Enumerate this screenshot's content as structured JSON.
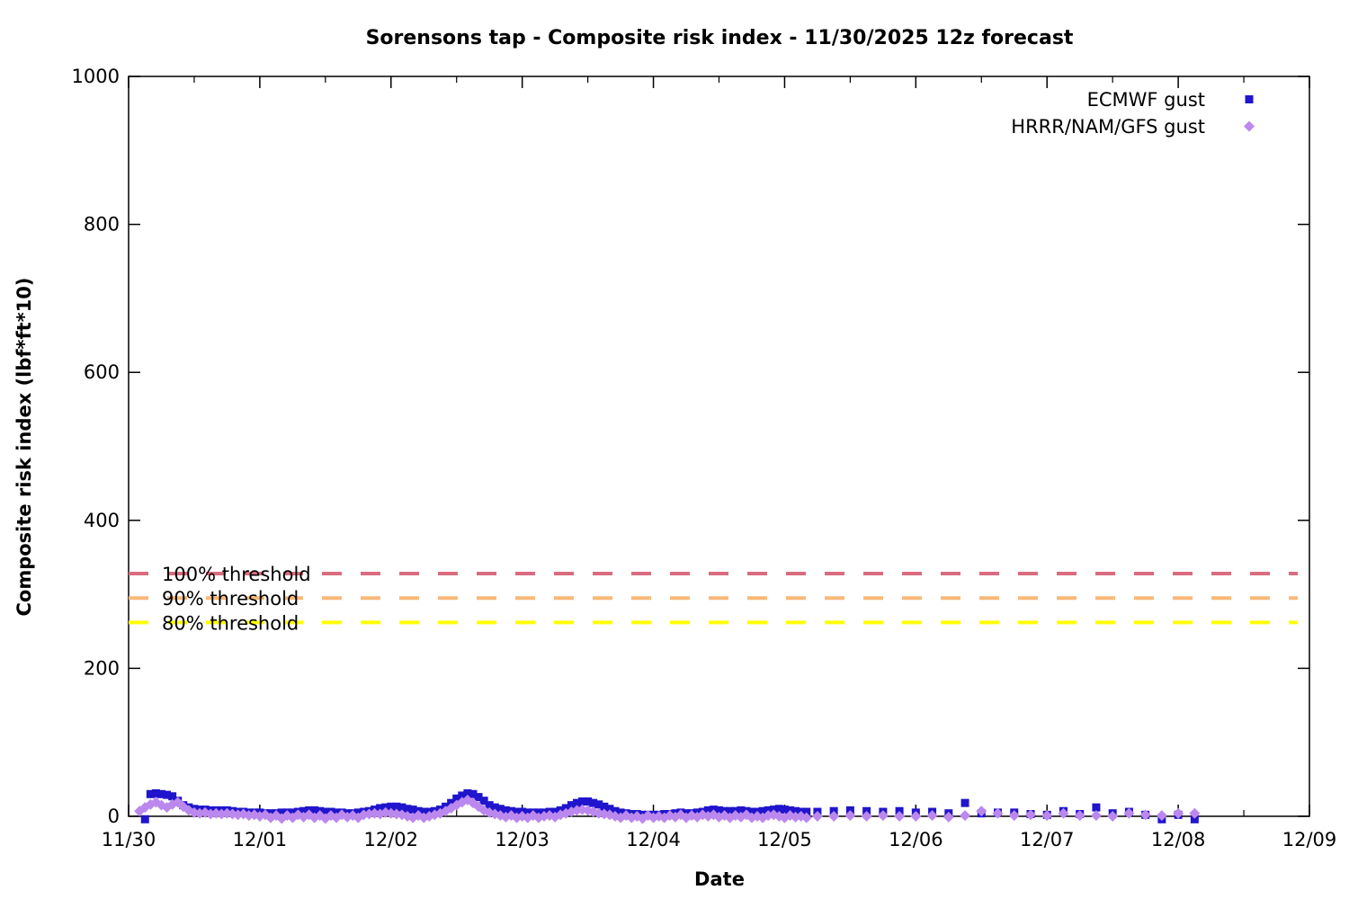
{
  "chart_data": {
    "type": "scatter",
    "title": "Sorensons tap - Composite risk index - 11/30/2025 12z forecast",
    "xlabel": "Date",
    "ylabel": "Composite risk index (lbf*ft*10)",
    "x_tick_labels": [
      "11/30",
      "12/01",
      "12/02",
      "12/03",
      "12/04",
      "12/05",
      "12/06",
      "12/07",
      "12/08",
      "12/09"
    ],
    "y_ticks": [
      0,
      200,
      400,
      600,
      800,
      1000
    ],
    "ylim": [
      0,
      1000
    ],
    "x_hours_range": [
      0,
      216
    ],
    "grid": false,
    "legend_position": "top-right",
    "axis_color": "#000000",
    "thresholds": [
      {
        "label": "100% threshold",
        "value": 328,
        "color": "#d96c80"
      },
      {
        "label": "90% threshold",
        "value": 295,
        "color": "#f9b878"
      },
      {
        "label": "80% threshold",
        "value": 262,
        "color": "#ffff00"
      }
    ],
    "series": [
      {
        "name": "ECMWF gust",
        "marker": "square",
        "color": "#2015cc",
        "points": [
          [
            3,
            -4
          ],
          [
            4,
            30
          ],
          [
            5,
            31
          ],
          [
            6,
            30
          ],
          [
            7,
            29
          ],
          [
            8,
            27
          ],
          [
            9,
            21
          ],
          [
            10,
            15
          ],
          [
            11,
            12
          ],
          [
            12,
            10
          ],
          [
            13,
            9
          ],
          [
            14,
            9
          ],
          [
            15,
            8
          ],
          [
            16,
            8
          ],
          [
            17,
            8
          ],
          [
            18,
            8
          ],
          [
            19,
            7
          ],
          [
            20,
            6
          ],
          [
            21,
            6
          ],
          [
            22,
            5
          ],
          [
            23,
            5
          ],
          [
            24,
            5
          ],
          [
            25,
            4
          ],
          [
            26,
            4
          ],
          [
            27,
            4
          ],
          [
            28,
            5
          ],
          [
            29,
            5
          ],
          [
            30,
            5
          ],
          [
            31,
            6
          ],
          [
            32,
            7
          ],
          [
            33,
            8
          ],
          [
            34,
            8
          ],
          [
            35,
            7
          ],
          [
            36,
            6
          ],
          [
            37,
            6
          ],
          [
            38,
            5
          ],
          [
            39,
            5
          ],
          [
            40,
            4
          ],
          [
            41,
            4
          ],
          [
            42,
            5
          ],
          [
            43,
            6
          ],
          [
            44,
            7
          ],
          [
            45,
            9
          ],
          [
            46,
            11
          ],
          [
            47,
            12
          ],
          [
            48,
            13
          ],
          [
            49,
            13
          ],
          [
            50,
            12
          ],
          [
            51,
            10
          ],
          [
            52,
            9
          ],
          [
            53,
            7
          ],
          [
            54,
            6
          ],
          [
            55,
            6
          ],
          [
            56,
            7
          ],
          [
            57,
            9
          ],
          [
            58,
            13
          ],
          [
            59,
            18
          ],
          [
            60,
            24
          ],
          [
            61,
            28
          ],
          [
            62,
            31
          ],
          [
            63,
            30
          ],
          [
            64,
            26
          ],
          [
            65,
            21
          ],
          [
            66,
            15
          ],
          [
            67,
            12
          ],
          [
            68,
            10
          ],
          [
            69,
            8
          ],
          [
            70,
            7
          ],
          [
            71,
            6
          ],
          [
            72,
            6
          ],
          [
            73,
            5
          ],
          [
            74,
            5
          ],
          [
            75,
            5
          ],
          [
            76,
            5
          ],
          [
            77,
            6
          ],
          [
            78,
            6
          ],
          [
            79,
            8
          ],
          [
            80,
            11
          ],
          [
            81,
            15
          ],
          [
            82,
            18
          ],
          [
            83,
            20
          ],
          [
            84,
            20
          ],
          [
            85,
            18
          ],
          [
            86,
            16
          ],
          [
            87,
            13
          ],
          [
            88,
            10
          ],
          [
            89,
            7
          ],
          [
            90,
            5
          ],
          [
            91,
            4
          ],
          [
            92,
            3
          ],
          [
            93,
            3
          ],
          [
            94,
            2
          ],
          [
            95,
            2
          ],
          [
            96,
            2
          ],
          [
            97,
            2
          ],
          [
            98,
            3
          ],
          [
            99,
            3
          ],
          [
            100,
            4
          ],
          [
            101,
            5
          ],
          [
            102,
            4
          ],
          [
            103,
            4
          ],
          [
            104,
            5
          ],
          [
            105,
            6
          ],
          [
            106,
            8
          ],
          [
            107,
            9
          ],
          [
            108,
            8
          ],
          [
            109,
            7
          ],
          [
            110,
            7
          ],
          [
            111,
            7
          ],
          [
            112,
            8
          ],
          [
            113,
            7
          ],
          [
            114,
            6
          ],
          [
            115,
            6
          ],
          [
            116,
            7
          ],
          [
            117,
            8
          ],
          [
            118,
            9
          ],
          [
            119,
            10
          ],
          [
            120,
            9
          ],
          [
            121,
            8
          ],
          [
            122,
            7
          ],
          [
            123,
            6
          ],
          [
            124,
            6
          ],
          [
            126,
            6
          ],
          [
            129,
            7
          ],
          [
            132,
            8
          ],
          [
            135,
            7
          ],
          [
            138,
            6
          ],
          [
            141,
            7
          ],
          [
            144,
            5
          ],
          [
            147,
            6
          ],
          [
            150,
            4
          ],
          [
            153,
            18
          ],
          [
            156,
            4
          ],
          [
            159,
            5
          ],
          [
            162,
            5
          ],
          [
            165,
            3
          ],
          [
            168,
            2
          ],
          [
            171,
            7
          ],
          [
            174,
            3
          ],
          [
            177,
            12
          ],
          [
            180,
            4
          ],
          [
            183,
            6
          ],
          [
            186,
            2
          ],
          [
            189,
            -4
          ],
          [
            192,
            2
          ],
          [
            195,
            -4
          ]
        ]
      },
      {
        "name": "HRRR/NAM/GFS gust",
        "marker": "diamond",
        "color": "#bb88ee",
        "points": [
          [
            2,
            7
          ],
          [
            3,
            12
          ],
          [
            4,
            16
          ],
          [
            5,
            19
          ],
          [
            6,
            15
          ],
          [
            7,
            12
          ],
          [
            8,
            16
          ],
          [
            9,
            19
          ],
          [
            10,
            13
          ],
          [
            11,
            8
          ],
          [
            12,
            5
          ],
          [
            13,
            4
          ],
          [
            14,
            5
          ],
          [
            15,
            3
          ],
          [
            16,
            4
          ],
          [
            17,
            3
          ],
          [
            18,
            4
          ],
          [
            19,
            3
          ],
          [
            20,
            2
          ],
          [
            21,
            3
          ],
          [
            22,
            1
          ],
          [
            23,
            2
          ],
          [
            24,
            0
          ],
          [
            25,
            2
          ],
          [
            26,
            -2
          ],
          [
            27,
            1
          ],
          [
            28,
            -3
          ],
          [
            29,
            1
          ],
          [
            30,
            -2
          ],
          [
            31,
            2
          ],
          [
            32,
            -1
          ],
          [
            33,
            2
          ],
          [
            34,
            -2
          ],
          [
            35,
            1
          ],
          [
            36,
            -3
          ],
          [
            37,
            1
          ],
          [
            38,
            -2
          ],
          [
            39,
            2
          ],
          [
            40,
            -1
          ],
          [
            41,
            1
          ],
          [
            42,
            -2
          ],
          [
            43,
            2
          ],
          [
            44,
            3
          ],
          [
            45,
            4
          ],
          [
            46,
            3
          ],
          [
            47,
            5
          ],
          [
            48,
            4
          ],
          [
            49,
            3
          ],
          [
            50,
            2
          ],
          [
            51,
            0
          ],
          [
            52,
            -2
          ],
          [
            53,
            1
          ],
          [
            54,
            -2
          ],
          [
            55,
            0
          ],
          [
            56,
            2
          ],
          [
            57,
            4
          ],
          [
            58,
            7
          ],
          [
            59,
            11
          ],
          [
            60,
            15
          ],
          [
            61,
            19
          ],
          [
            62,
            22
          ],
          [
            63,
            18
          ],
          [
            64,
            13
          ],
          [
            65,
            8
          ],
          [
            66,
            5
          ],
          [
            67,
            3
          ],
          [
            68,
            1
          ],
          [
            69,
            -1
          ],
          [
            70,
            1
          ],
          [
            71,
            -2
          ],
          [
            72,
            0
          ],
          [
            73,
            -2
          ],
          [
            74,
            1
          ],
          [
            75,
            -2
          ],
          [
            76,
            0
          ],
          [
            77,
            1
          ],
          [
            78,
            -1
          ],
          [
            79,
            2
          ],
          [
            80,
            4
          ],
          [
            81,
            6
          ],
          [
            82,
            8
          ],
          [
            83,
            9
          ],
          [
            84,
            8
          ],
          [
            85,
            6
          ],
          [
            86,
            4
          ],
          [
            87,
            3
          ],
          [
            88,
            2
          ],
          [
            89,
            0
          ],
          [
            90,
            -2
          ],
          [
            91,
            1
          ],
          [
            92,
            -2
          ],
          [
            93,
            0
          ],
          [
            94,
            -3
          ],
          [
            95,
            1
          ],
          [
            96,
            -2
          ],
          [
            97,
            0
          ],
          [
            98,
            -2
          ],
          [
            99,
            1
          ],
          [
            100,
            -1
          ],
          [
            101,
            2
          ],
          [
            102,
            -2
          ],
          [
            103,
            1
          ],
          [
            104,
            -1
          ],
          [
            105,
            2
          ],
          [
            106,
            0
          ],
          [
            107,
            2
          ],
          [
            108,
            -1
          ],
          [
            109,
            1
          ],
          [
            110,
            -2
          ],
          [
            111,
            1
          ],
          [
            112,
            -1
          ],
          [
            113,
            2
          ],
          [
            114,
            -2
          ],
          [
            115,
            0
          ],
          [
            116,
            -2
          ],
          [
            117,
            1
          ],
          [
            118,
            2
          ],
          [
            119,
            0
          ],
          [
            120,
            -2
          ],
          [
            121,
            1
          ],
          [
            122,
            -1
          ],
          [
            123,
            0
          ],
          [
            124,
            -2
          ],
          [
            126,
            0
          ],
          [
            129,
            0
          ],
          [
            132,
            1
          ],
          [
            135,
            0
          ],
          [
            138,
            1
          ],
          [
            141,
            0
          ],
          [
            144,
            0
          ],
          [
            147,
            1
          ],
          [
            150,
            -1
          ],
          [
            153,
            1
          ],
          [
            156,
            7
          ],
          [
            159,
            4
          ],
          [
            162,
            1
          ],
          [
            165,
            2
          ],
          [
            168,
            1
          ],
          [
            171,
            4
          ],
          [
            174,
            1
          ],
          [
            177,
            1
          ],
          [
            180,
            0
          ],
          [
            183,
            4
          ],
          [
            186,
            2
          ],
          [
            189,
            1
          ],
          [
            192,
            4
          ],
          [
            195,
            4
          ]
        ]
      }
    ]
  }
}
